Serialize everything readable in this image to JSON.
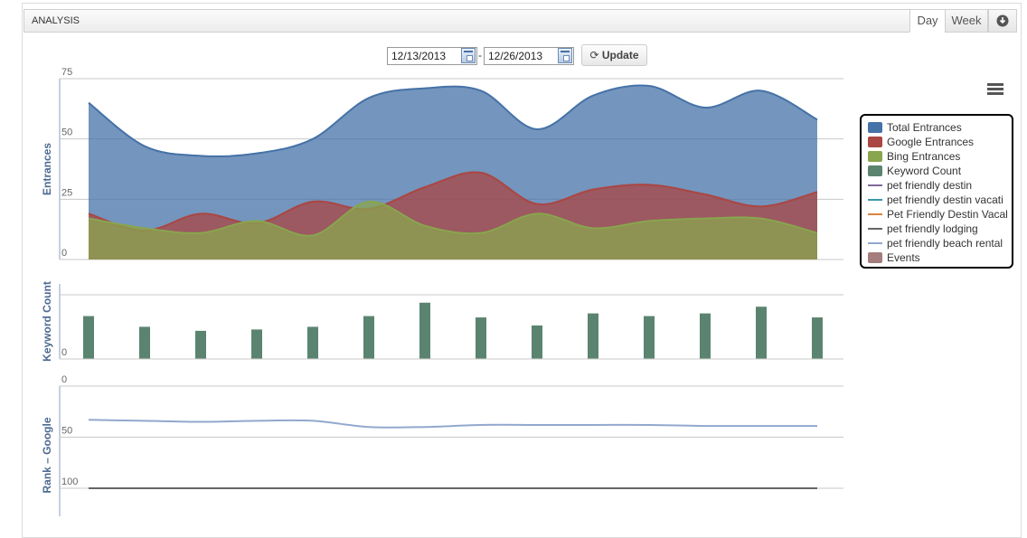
{
  "header": {
    "title": "ANALYSIS",
    "day_label": "Day",
    "week_label": "Week",
    "download_icon": "download-icon"
  },
  "date_range": {
    "start": "12/13/2013",
    "separator": "-",
    "end": "12/26/2013",
    "update_label": "Update",
    "calendar_icon": "calendar-icon"
  },
  "chart_menu_icon": "hamburger-menu-icon",
  "legend": [
    {
      "label": "Total Entrances",
      "color": "#4572A7",
      "kind": "area"
    },
    {
      "label": "Google Entrances",
      "color": "#AA4643",
      "kind": "area"
    },
    {
      "label": "Bing Entrances",
      "color": "#89A54E",
      "kind": "area"
    },
    {
      "label": "Keyword Count",
      "color": "#5B8470",
      "kind": "column"
    },
    {
      "label": "pet friendly destin",
      "color": "#80699B",
      "kind": "line"
    },
    {
      "label": "pet friendly destin vacati",
      "color": "#3D96AE",
      "kind": "line"
    },
    {
      "label": "Pet Friendly Destin Vacal",
      "color": "#DB843D",
      "kind": "line"
    },
    {
      "label": "pet friendly lodging",
      "color": "#666666",
      "kind": "line"
    },
    {
      "label": "pet friendly beach rental",
      "color": "#92A8CD",
      "kind": "line"
    },
    {
      "label": "Events",
      "color": "#A47D7C",
      "kind": "area"
    }
  ],
  "chart_data": [
    {
      "type": "area",
      "ylabel": "Entrances",
      "ylim": [
        0,
        75
      ],
      "yticks": [
        0,
        25,
        50,
        75
      ],
      "grid": true,
      "series": [
        {
          "name": "Total Entrances",
          "color": "#4572A7",
          "values": [
            65,
            47,
            43,
            44,
            50,
            67,
            71,
            70,
            54,
            68,
            72,
            63,
            70,
            58
          ]
        },
        {
          "name": "Google Entrances",
          "color": "#AA4643",
          "values": [
            19,
            12,
            19,
            15,
            24,
            21,
            30,
            36,
            23,
            29,
            31,
            27,
            22,
            28
          ]
        },
        {
          "name": "Bing Entrances",
          "color": "#89A54E",
          "values": [
            17,
            13,
            11,
            16,
            10,
            24,
            14,
            11,
            19,
            13,
            16,
            17,
            17,
            11
          ]
        }
      ]
    },
    {
      "type": "bar",
      "ylabel": "Keyword Count",
      "ylim": [
        0,
        28
      ],
      "yticks": [
        0
      ],
      "grid": true,
      "series": [
        {
          "name": "Keyword Count",
          "color": "#5B8470",
          "values": [
            16,
            12,
            10.5,
            11,
            12,
            16,
            21,
            15.5,
            12.5,
            17,
            16,
            17,
            19.5,
            15.5
          ]
        }
      ]
    },
    {
      "type": "line",
      "ylabel": "Rank – Google",
      "ylim": [
        0,
        100
      ],
      "reversed": true,
      "yticks": [
        0,
        50,
        100
      ],
      "grid": true,
      "series": [
        {
          "name": "pet friendly beach rental",
          "color": "#92A8CD",
          "values": [
            33,
            34,
            35,
            34,
            34,
            40,
            40,
            38,
            38,
            38,
            38,
            39,
            39,
            39
          ]
        },
        {
          "name": "pet friendly lodging",
          "color": "#666666",
          "values": [
            100,
            100,
            100,
            100,
            100,
            100,
            100,
            100,
            100,
            100,
            100,
            100,
            100,
            100
          ]
        }
      ]
    }
  ]
}
